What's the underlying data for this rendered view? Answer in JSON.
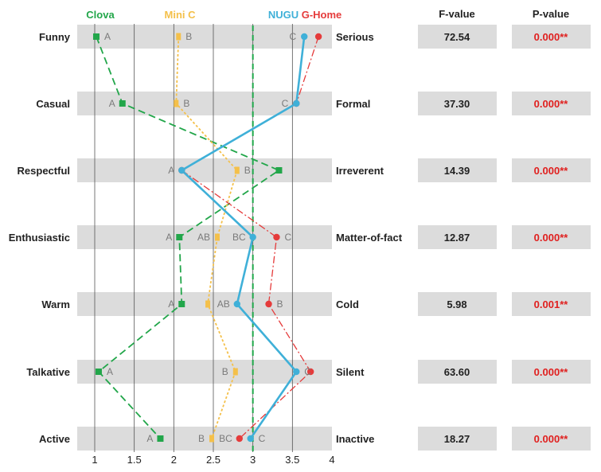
{
  "chart_data": {
    "type": "line",
    "title": "",
    "xlabel": "",
    "ylabel": "",
    "xlim": [
      1,
      4
    ],
    "x_ticks": [
      "1",
      "1.5",
      "2",
      "2.5",
      "3",
      "3.5",
      "4"
    ],
    "reference_x": 3,
    "left_labels": [
      "Funny",
      "Casual",
      "Respectful",
      "Enthusiastic",
      "Warm",
      "Talkative",
      "Active"
    ],
    "right_labels": [
      "Serious",
      "Formal",
      "Irreverent",
      "Matter-of-fact",
      "Cold",
      "Silent",
      "Inactive"
    ],
    "table_headers": {
      "f": "F-value",
      "p": "P-value"
    },
    "f_values": [
      "72.54",
      "37.30",
      "14.39",
      "12.87",
      "5.98",
      "63.60",
      "18.27"
    ],
    "p_values": [
      "0.000**",
      "0.000**",
      "0.000**",
      "0.000**",
      "0.001**",
      "0.000**",
      "0.000**"
    ],
    "series": [
      {
        "name": "Clova",
        "color": "#22a64a",
        "values": [
          1.02,
          1.35,
          3.33,
          2.07,
          2.1,
          1.05,
          1.83
        ],
        "letters": [
          "A",
          "A",
          "",
          "A",
          "A",
          "A",
          "A"
        ]
      },
      {
        "name": "Mini C",
        "color": "#f4c04a",
        "values": [
          2.06,
          2.03,
          2.8,
          2.55,
          2.43,
          2.78,
          2.48
        ],
        "letters": [
          "B",
          "B",
          "B",
          "AB",
          "",
          "B",
          "B"
        ]
      },
      {
        "name": "NUGU",
        "color": "#3fb0d8",
        "values": [
          3.65,
          3.55,
          2.1,
          3.0,
          2.8,
          3.55,
          2.97
        ],
        "letters": [
          "C",
          "C",
          "",
          "BC",
          "AB",
          "C",
          "C"
        ]
      },
      {
        "name": "G-Home",
        "color": "#e53b3b",
        "values": [
          3.83,
          3.55,
          2.1,
          3.3,
          3.2,
          3.73,
          2.83
        ],
        "letters": [
          "",
          "",
          "A",
          "C",
          "B",
          "",
          "BC"
        ]
      }
    ]
  }
}
